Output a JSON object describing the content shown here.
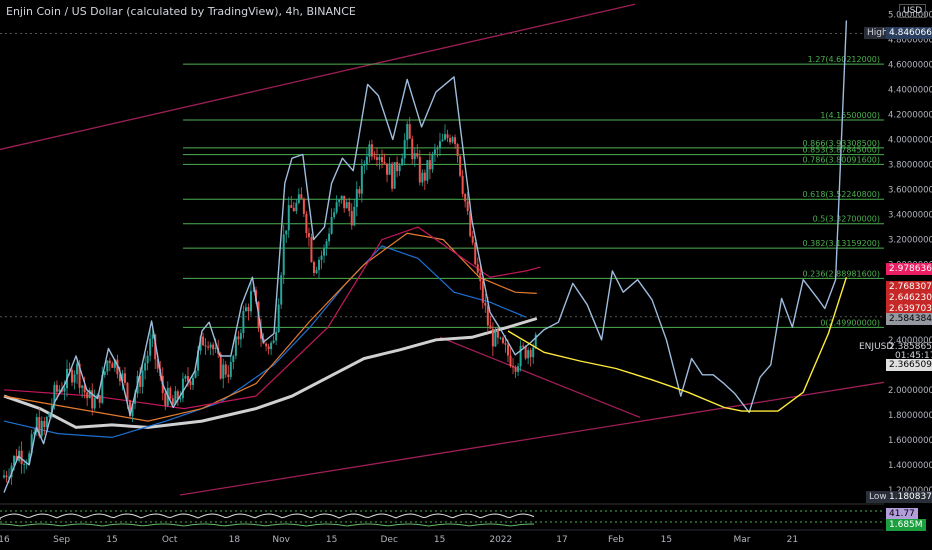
{
  "header": {
    "title": "Enjin Coin / US Dollar (calculated by TradingView), 4h, BINANCE",
    "currency": "USD"
  },
  "price_axis": {
    "ticks": [
      "5.00000000",
      "4.80000000",
      "4.60000000",
      "4.40000000",
      "4.20000000",
      "4.00000000",
      "3.80000000",
      "3.60000000",
      "3.40000000",
      "3.20000000",
      "3.00000000",
      "2.80000000",
      "2.60000000",
      "2.40000000",
      "2.20000000",
      "2.00000000",
      "1.80000000",
      "1.60000000",
      "1.40000000",
      "1.20000000"
    ],
    "tick_values": [
      5.0,
      4.8,
      4.6,
      4.4,
      4.2,
      4.0,
      3.8,
      3.6,
      3.4,
      3.2,
      3.0,
      2.8,
      2.6,
      2.4,
      2.2,
      2.0,
      1.8,
      1.6,
      1.4,
      1.2
    ]
  },
  "time_axis": {
    "labels": [
      "16",
      "Sep",
      "15",
      "Oct",
      "18",
      "Nov",
      "15",
      "Dec",
      "15",
      "2022",
      "17",
      "Feb",
      "15",
      "Mar",
      "21"
    ]
  },
  "markers": {
    "high_label": "High",
    "high_value": "4.84606634",
    "low_label": "Low",
    "low_value": "1.18083703",
    "symbol": "ENJUSD",
    "last_price": "2.38586582",
    "countdown": "01:45:17",
    "ma_badges": [
      "2.97863691",
      "2.76830792",
      "2.64623056",
      "2.63970348",
      "2.58438407",
      "2.36650912"
    ],
    "osc_badges": [
      "41.77",
      "1.685M"
    ]
  },
  "fib_levels": [
    {
      "label": "1.27(4.60212000)",
      "value": 4.60212
    },
    {
      "label": "1(4.15500000)",
      "value": 4.155
    },
    {
      "label": "0.866(3.93308500)",
      "value": 3.933085
    },
    {
      "label": "0.853(3.87845000)",
      "value": 3.87845
    },
    {
      "label": "0.786(3.80091600)",
      "value": 3.800916
    },
    {
      "label": "0.618(3.52240800)",
      "value": 3.522408
    },
    {
      "label": "0.5(3.32700000)",
      "value": 3.327
    },
    {
      "label": "0.382(3.13159200)",
      "value": 3.131592
    },
    {
      "label": "0.236(2.88981600)",
      "value": 2.889816
    },
    {
      "label": "0(2.49900000)",
      "value": 2.499
    }
  ],
  "colors": {
    "background": "#000000",
    "fib": "#4caf50",
    "blue_path": "#9ebcdc",
    "yellow_curve": "#ffeb3b",
    "channel": "#9c1f56",
    "up": "#26a69a",
    "down": "#ef5350",
    "badge_high": "#2a3f5f",
    "badge_pink": "#e91e63",
    "badge_red": "#c62828",
    "badge_grey": "#9598a1",
    "badge_lilac": "#b39ddb",
    "badge_green": "#1b9e3e"
  },
  "chart_data": {
    "type": "line",
    "x_unit": "days since 2021-08-16",
    "xlabels_days": [
      0,
      16,
      30,
      46,
      64,
      77,
      91,
      107,
      121,
      138,
      155,
      170,
      184,
      205,
      219
    ],
    "ylim": [
      1.12,
      5.05
    ],
    "series": [
      {
        "name": "blue_projection",
        "x": [
          0,
          4,
          7,
          9,
          11,
          14,
          17,
          20,
          23,
          26,
          29,
          32,
          35,
          38,
          41,
          44,
          47,
          50,
          53,
          55,
          57,
          60,
          63,
          66,
          69,
          72,
          75,
          78,
          80,
          83,
          86,
          89,
          91,
          94,
          97,
          101,
          104,
          108,
          112,
          116,
          120,
          125,
          130,
          135,
          138,
          142,
          146,
          150,
          154,
          158,
          162,
          166,
          169,
          172,
          176,
          180,
          184,
          188,
          191,
          194,
          197,
          200,
          203,
          207,
          210,
          213,
          216,
          219,
          222,
          226,
          228,
          231,
          234
        ],
        "y": [
          1.18,
          1.47,
          1.4,
          1.7,
          1.57,
          1.9,
          2.05,
          2.27,
          2.0,
          1.93,
          2.33,
          2.17,
          1.8,
          2.15,
          2.55,
          2.05,
          1.86,
          2.0,
          2.15,
          2.47,
          2.54,
          2.27,
          2.27,
          2.68,
          2.9,
          2.38,
          2.45,
          3.65,
          3.85,
          3.88,
          3.2,
          3.3,
          3.65,
          3.85,
          3.75,
          4.44,
          4.35,
          4.0,
          4.48,
          4.1,
          4.38,
          4.5,
          3.35,
          2.62,
          2.48,
          2.28,
          2.37,
          2.48,
          2.54,
          2.85,
          2.68,
          2.4,
          2.95,
          2.78,
          2.88,
          2.72,
          2.4,
          1.95,
          2.25,
          2.12,
          2.12,
          2.05,
          1.97,
          1.82,
          2.1,
          2.2,
          2.73,
          2.5,
          2.88,
          2.73,
          2.65,
          2.88,
          4.95
        ]
      },
      {
        "name": "yellow_curve",
        "x": [
          140,
          150,
          160,
          170,
          180,
          190,
          200,
          205,
          215,
          222,
          229,
          234
        ],
        "y": [
          2.47,
          2.3,
          2.23,
          2.17,
          2.08,
          1.98,
          1.86,
          1.83,
          1.83,
          1.98,
          2.45,
          2.9
        ]
      }
    ]
  }
}
